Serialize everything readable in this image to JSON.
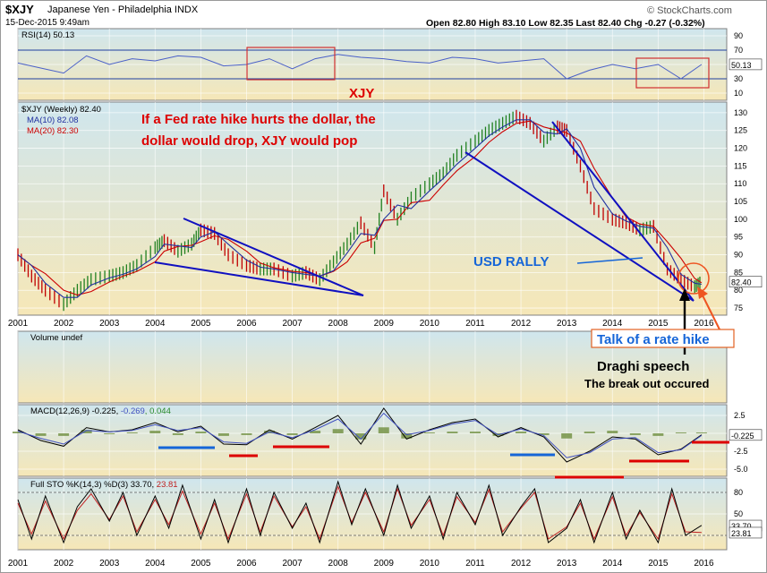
{
  "header": {
    "symbol": "$XJY",
    "name": "Japanese Yen - Philadelphia INDX",
    "date": "15-Dec-2015 9:49am",
    "brand": "© StockCharts.com",
    "quote": "Open 82.80  High 83.10  Low 82.35  Last 82.40  Chg -0.27 (-0.32%)",
    "quote_chg_color": "#cc0000"
  },
  "colors": {
    "annotation_red": "#dd0000",
    "annotation_blue": "#1565d8",
    "trend_blue": "#1010c0",
    "panel_bg_top": "#cfe6ee",
    "panel_bg_bottom": "#f6e7b7",
    "price_up": "#208020",
    "price_down": "#c00000"
  },
  "annotations": {
    "xjy": "XJY",
    "fed_line1": "If  a Fed rate hike hurts the dollar,  the",
    "fed_line2": "dollar would drop,  XJY would pop",
    "usd_rally": "USD RALLY",
    "rate_hike": "Talk of a rate hike",
    "draghi": "Draghi speech",
    "breakout": "The break out occured"
  },
  "chart_data": [
    {
      "type": "line",
      "panel": "rsi",
      "title": "RSI(14) 50.13",
      "yticks": [
        10,
        30,
        50,
        70,
        90
      ],
      "ylim": [
        0,
        100
      ],
      "reference_lines": [
        30,
        70
      ],
      "last_value_label": "50.13",
      "x": [
        2001.0,
        2001.5,
        2002.0,
        2002.5,
        2003.0,
        2003.5,
        2004.0,
        2004.5,
        2005.0,
        2005.5,
        2006.0,
        2006.5,
        2007.0,
        2007.5,
        2008.0,
        2008.5,
        2009.0,
        2009.5,
        2010.0,
        2010.5,
        2011.0,
        2011.5,
        2012.0,
        2012.5,
        2013.0,
        2013.5,
        2014.0,
        2014.5,
        2015.0,
        2015.5,
        2015.95
      ],
      "values": [
        52,
        45,
        38,
        62,
        50,
        58,
        55,
        62,
        60,
        48,
        50,
        58,
        44,
        58,
        64,
        60,
        58,
        54,
        52,
        60,
        58,
        52,
        55,
        58,
        30,
        42,
        50,
        44,
        50,
        30,
        50
      ]
    },
    {
      "type": "line",
      "panel": "price",
      "title": "$XJY (Weekly) 82.40",
      "legend": [
        "MA(10) 82.08",
        "MA(20) 82.30"
      ],
      "xticks": [
        "2001",
        "2002",
        "2003",
        "2004",
        "2005",
        "2006",
        "2007",
        "2008",
        "2009",
        "2010",
        "2011",
        "2012",
        "2013",
        "2014",
        "2015",
        "2016"
      ],
      "yticks": [
        75,
        80,
        85,
        90,
        95,
        100,
        105,
        110,
        115,
        120,
        125,
        130
      ],
      "ylim": [
        73,
        133
      ],
      "last_value_label": "82.40",
      "x": [
        2001.0,
        2001.3,
        2001.6,
        2002.0,
        2002.3,
        2002.6,
        2003.0,
        2003.3,
        2003.6,
        2004.0,
        2004.2,
        2004.5,
        2004.8,
        2005.0,
        2005.3,
        2005.6,
        2006.0,
        2006.3,
        2006.6,
        2007.0,
        2007.3,
        2007.6,
        2007.9,
        2008.2,
        2008.5,
        2008.8,
        2009.0,
        2009.3,
        2009.6,
        2010.0,
        2010.3,
        2010.6,
        2011.0,
        2011.3,
        2011.6,
        2011.9,
        2012.2,
        2012.5,
        2012.8,
        2013.0,
        2013.3,
        2013.6,
        2014.0,
        2014.3,
        2014.6,
        2014.9,
        2015.2,
        2015.5,
        2015.8,
        2015.95
      ],
      "values": [
        90,
        84,
        80,
        76,
        80,
        83,
        84,
        85,
        87,
        92,
        94,
        91,
        93,
        97,
        96,
        90,
        87,
        86,
        86,
        84,
        85,
        83,
        88,
        93,
        99,
        92,
        108,
        100,
        106,
        110,
        113,
        118,
        122,
        125,
        127,
        129,
        127,
        122,
        126,
        125,
        115,
        103,
        100,
        99,
        97,
        98,
        86,
        83,
        81,
        82.4
      ],
      "series": [
        {
          "name": "MA(10) 82.08",
          "color": "#2030a0"
        },
        {
          "name": "MA(20) 82.30",
          "color": "#cc0000"
        }
      ]
    },
    {
      "type": "bar",
      "panel": "volume",
      "title": "Volume undef",
      "values": []
    },
    {
      "type": "line",
      "panel": "macd",
      "title": "MACD(12,26,9) -0.225, -0.269, 0.044",
      "title_parts": [
        "MACD(12,26,9) -0.225, ",
        "-0.269",
        ", 0.044"
      ],
      "yticks": [
        2.5,
        0,
        -2.5,
        -5.0
      ],
      "ytick_labels": [
        "2.5",
        "",
        "-2.5",
        "-5.0"
      ],
      "ylim": [
        -6,
        4
      ],
      "last_value_label": "-0.225",
      "x": [
        2001.0,
        2001.5,
        2002.0,
        2002.5,
        2003.0,
        2003.5,
        2004.0,
        2004.5,
        2005.0,
        2005.5,
        2006.0,
        2006.5,
        2007.0,
        2007.5,
        2008.0,
        2008.5,
        2009.0,
        2009.5,
        2010.0,
        2010.5,
        2011.0,
        2011.5,
        2012.0,
        2012.5,
        2013.0,
        2013.5,
        2014.0,
        2014.5,
        2015.0,
        2015.5,
        2015.95
      ],
      "values": [
        0.5,
        -1.0,
        -1.8,
        0.8,
        0.2,
        0.5,
        1.5,
        0.2,
        1.0,
        -1.5,
        -1.6,
        0.5,
        -0.8,
        0.8,
        2.5,
        -1.5,
        3.5,
        -0.8,
        0.5,
        1.5,
        2.0,
        -0.5,
        0.8,
        -0.5,
        -4.0,
        -2.5,
        -0.5,
        -0.8,
        -3.0,
        -2.2,
        -0.2
      ],
      "signal": [
        0.3,
        -0.7,
        -1.5,
        0.4,
        0.2,
        0.4,
        1.2,
        0.4,
        0.8,
        -1.2,
        -1.4,
        0.2,
        -0.6,
        0.5,
        2.0,
        -0.8,
        2.8,
        -0.2,
        0.4,
        1.3,
        1.8,
        -0.2,
        0.6,
        -0.3,
        -3.4,
        -2.7,
        -0.8,
        -0.6,
        -2.7,
        -2.3,
        -0.3
      ]
    },
    {
      "type": "line",
      "panel": "stochastic",
      "title": "Full STO %K(14,3) %D(3) 33.70, 23.81",
      "title_parts": [
        "Full STO %K(14,3) %D(3) 33.70, ",
        "23.81"
      ],
      "yticks": [
        20,
        50,
        80
      ],
      "ytick_labels": [
        "",
        "50",
        "80"
      ],
      "ylim": [
        0,
        100
      ],
      "reference_lines": [
        20,
        80
      ],
      "last_value_labels": [
        "33.70",
        "23.81"
      ],
      "x": [
        2001.0,
        2001.3,
        2001.6,
        2002.0,
        2002.3,
        2002.6,
        2003.0,
        2003.3,
        2003.6,
        2004.0,
        2004.3,
        2004.6,
        2005.0,
        2005.3,
        2005.6,
        2006.0,
        2006.3,
        2006.6,
        2007.0,
        2007.3,
        2007.6,
        2008.0,
        2008.3,
        2008.6,
        2009.0,
        2009.3,
        2009.6,
        2010.0,
        2010.3,
        2010.6,
        2011.0,
        2011.3,
        2011.6,
        2012.0,
        2012.3,
        2012.6,
        2013.0,
        2013.3,
        2013.6,
        2014.0,
        2014.3,
        2014.6,
        2015.0,
        2015.3,
        2015.6,
        2015.95
      ],
      "values": [
        70,
        15,
        75,
        10,
        60,
        85,
        40,
        80,
        20,
        75,
        30,
        90,
        15,
        70,
        10,
        85,
        20,
        80,
        30,
        65,
        10,
        95,
        35,
        85,
        20,
        90,
        30,
        75,
        15,
        80,
        35,
        90,
        20,
        60,
        85,
        10,
        30,
        70,
        10,
        80,
        15,
        55,
        10,
        85,
        20,
        34
      ],
      "signal": [
        65,
        22,
        68,
        15,
        55,
        78,
        42,
        75,
        25,
        70,
        35,
        82,
        22,
        65,
        15,
        78,
        25,
        75,
        32,
        60,
        15,
        88,
        38,
        80,
        25,
        85,
        34,
        70,
        20,
        74,
        38,
        84,
        25,
        58,
        80,
        15,
        32,
        65,
        15,
        74,
        20,
        52,
        15,
        78,
        25,
        24
      ]
    }
  ]
}
